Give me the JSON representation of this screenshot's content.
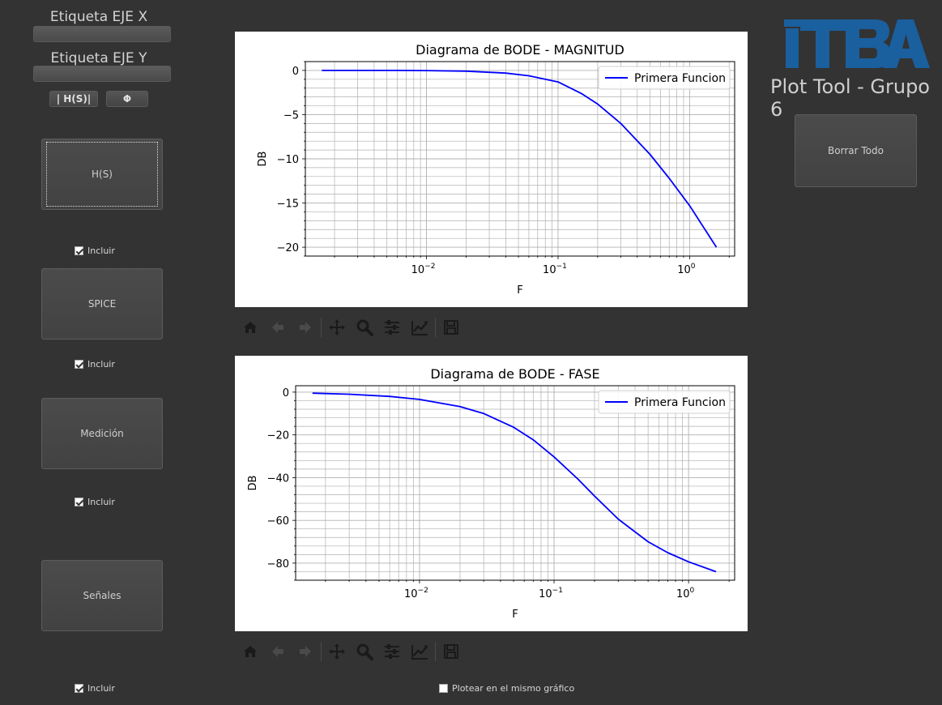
{
  "left_panel": {
    "x_label_title": "Etiqueta EJE X",
    "y_label_title": "Etiqueta EJE Y",
    "btn_mag": "| H(S)|",
    "btn_phase": "Φ",
    "sources": [
      {
        "label": "H(S)",
        "include": "Incluir"
      },
      {
        "label": "SPICE",
        "include": "Incluir"
      },
      {
        "label": "Medición",
        "include": "Incluir"
      },
      {
        "label": "Señales",
        "include": "Incluir"
      }
    ]
  },
  "branding": {
    "logo": "ITBA",
    "subtitle": "Plot Tool - Grupo 6",
    "logo_color": "#1a5f9e"
  },
  "right_panel": {
    "clear_all": "Borrar Todo"
  },
  "bottom": {
    "same_plot": "Plotear en el mismo gráfico"
  },
  "toolbar_icons": [
    "home-icon",
    "back-icon",
    "forward-icon",
    "pan-icon",
    "zoom-icon",
    "configure-icon",
    "edit-curve-icon",
    "save-icon"
  ],
  "chart_data": [
    {
      "type": "line",
      "title": "Diagrama de BODE - MAGNITUD",
      "xlabel": "F",
      "ylabel": "DB",
      "x_scale": "log",
      "xlim": [
        0.0012,
        2.2
      ],
      "ylim": [
        -21,
        1
      ],
      "yticks": [
        0,
        -5,
        -10,
        -15,
        -20
      ],
      "ytick_labels": [
        "0",
        "−5",
        "−10",
        "−15",
        "−20"
      ],
      "xtick_labels": [
        "10−2",
        "10−1",
        "100"
      ],
      "grid": true,
      "legend": "top-right",
      "series": [
        {
          "name": "Primera Funcion",
          "color": "#0000ff",
          "x": [
            0.0016,
            0.003,
            0.006,
            0.01,
            0.02,
            0.04,
            0.06,
            0.1,
            0.15,
            0.2,
            0.3,
            0.5,
            0.7,
            1.0,
            1.6
          ],
          "y": [
            0.0,
            0.0,
            0.0,
            -0.02,
            -0.08,
            -0.3,
            -0.6,
            -1.3,
            -2.6,
            -3.8,
            -6.0,
            -9.5,
            -12.2,
            -15.3,
            -20.0
          ]
        }
      ]
    },
    {
      "type": "line",
      "title": "Diagrama de BODE - FASE",
      "xlabel": "F",
      "ylabel": "DB",
      "x_scale": "log",
      "xlim": [
        0.0012,
        2.2
      ],
      "ylim": [
        -88,
        3
      ],
      "yticks": [
        0,
        -20,
        -40,
        -60,
        -80
      ],
      "ytick_labels": [
        "0",
        "−20",
        "−40",
        "−60",
        "−80"
      ],
      "xtick_labels": [
        "10−2",
        "10−1",
        "100"
      ],
      "grid": true,
      "legend": "top-right",
      "series": [
        {
          "name": "Primera Funcion",
          "color": "#0000ff",
          "x": [
            0.0016,
            0.003,
            0.006,
            0.01,
            0.02,
            0.03,
            0.05,
            0.07,
            0.1,
            0.15,
            0.2,
            0.3,
            0.5,
            0.7,
            1.0,
            1.6
          ],
          "y": [
            -0.5,
            -1.0,
            -2.0,
            -3.4,
            -6.8,
            -10.0,
            -16.4,
            -22.3,
            -30.3,
            -40.6,
            -48.6,
            -59.4,
            -70.0,
            -75.1,
            -79.4,
            -84.0
          ]
        }
      ]
    }
  ]
}
